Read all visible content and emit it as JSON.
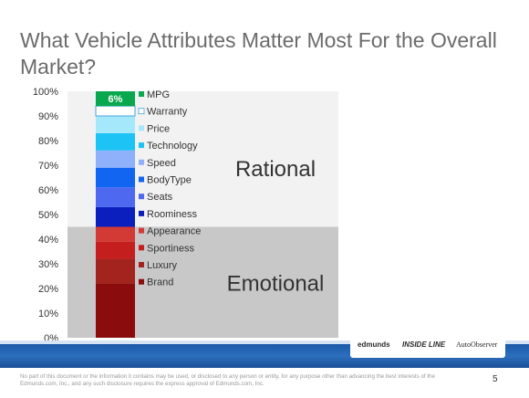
{
  "slide": {
    "title": "What Vehicle Attributes Matter Most For the Overall Market?",
    "disclaimer": "No part of this document or the information it contains may be used, or disclosed to any person or entity, for any purpose other than advancing the best interests of the Edmunds.com, Inc., and any such disclosure requires the express approval of Edmunds.com, Inc.",
    "page_number": "5",
    "logos": {
      "edmunds": "edmunds",
      "insideline": "INSIDE LINE",
      "autoobserver": "AutoObserver"
    }
  },
  "chart_data": {
    "type": "bar",
    "stacked": true,
    "title": "",
    "xlabel": "",
    "ylabel": "",
    "ylim": [
      0,
      100
    ],
    "yticks": [
      "0%",
      "10%",
      "20%",
      "30%",
      "40%",
      "50%",
      "60%",
      "70%",
      "80%",
      "90%",
      "100%"
    ],
    "grid": false,
    "legend_position": "right",
    "series": [
      {
        "name": "Brand",
        "value": 22,
        "color": "#8a0c0c"
      },
      {
        "name": "Luxury",
        "value": 10,
        "color": "#a3231f"
      },
      {
        "name": "Sportiness",
        "value": 7,
        "color": "#c41e1e"
      },
      {
        "name": "Appearance",
        "value": 6,
        "color": "#d43a35"
      },
      {
        "name": "Roominess",
        "value": 8,
        "color": "#0b1fbf"
      },
      {
        "name": "Seats",
        "value": 8,
        "color": "#4e68f0"
      },
      {
        "name": "BodyType",
        "value": 8,
        "color": "#1265f0"
      },
      {
        "name": "Speed",
        "value": 7,
        "color": "#8fb0fb"
      },
      {
        "name": "Technology",
        "value": 7,
        "color": "#1ec3f5"
      },
      {
        "name": "Price",
        "value": 7,
        "color": "#a6e8fb"
      },
      {
        "name": "Warranty",
        "value": 4,
        "color": "#ffffff"
      },
      {
        "name": "MPG",
        "value": 6,
        "color": "#0aa84e"
      }
    ],
    "data_labels": [
      {
        "series": "MPG",
        "text": "6%"
      }
    ],
    "regions": [
      {
        "label": "Rational",
        "from": 45,
        "to": 100,
        "color": "#f2f2f2"
      },
      {
        "label": "Emotional",
        "from": 0,
        "to": 45,
        "color": "#c8c8c8"
      }
    ]
  }
}
